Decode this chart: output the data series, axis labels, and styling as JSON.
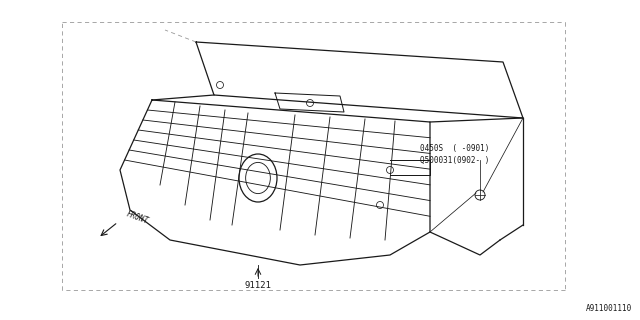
{
  "bg_color": "#ffffff",
  "line_color": "#1a1a1a",
  "dash_color": "#999999",
  "text_color": "#1a1a1a",
  "fig_width": 6.4,
  "fig_height": 3.2,
  "dpi": 100,
  "label_91121": "91121",
  "label_part1": "0450S  ( -0901)",
  "label_part2": "Q500031(0902- )",
  "label_front": "FRONT",
  "label_code": "A911001110"
}
